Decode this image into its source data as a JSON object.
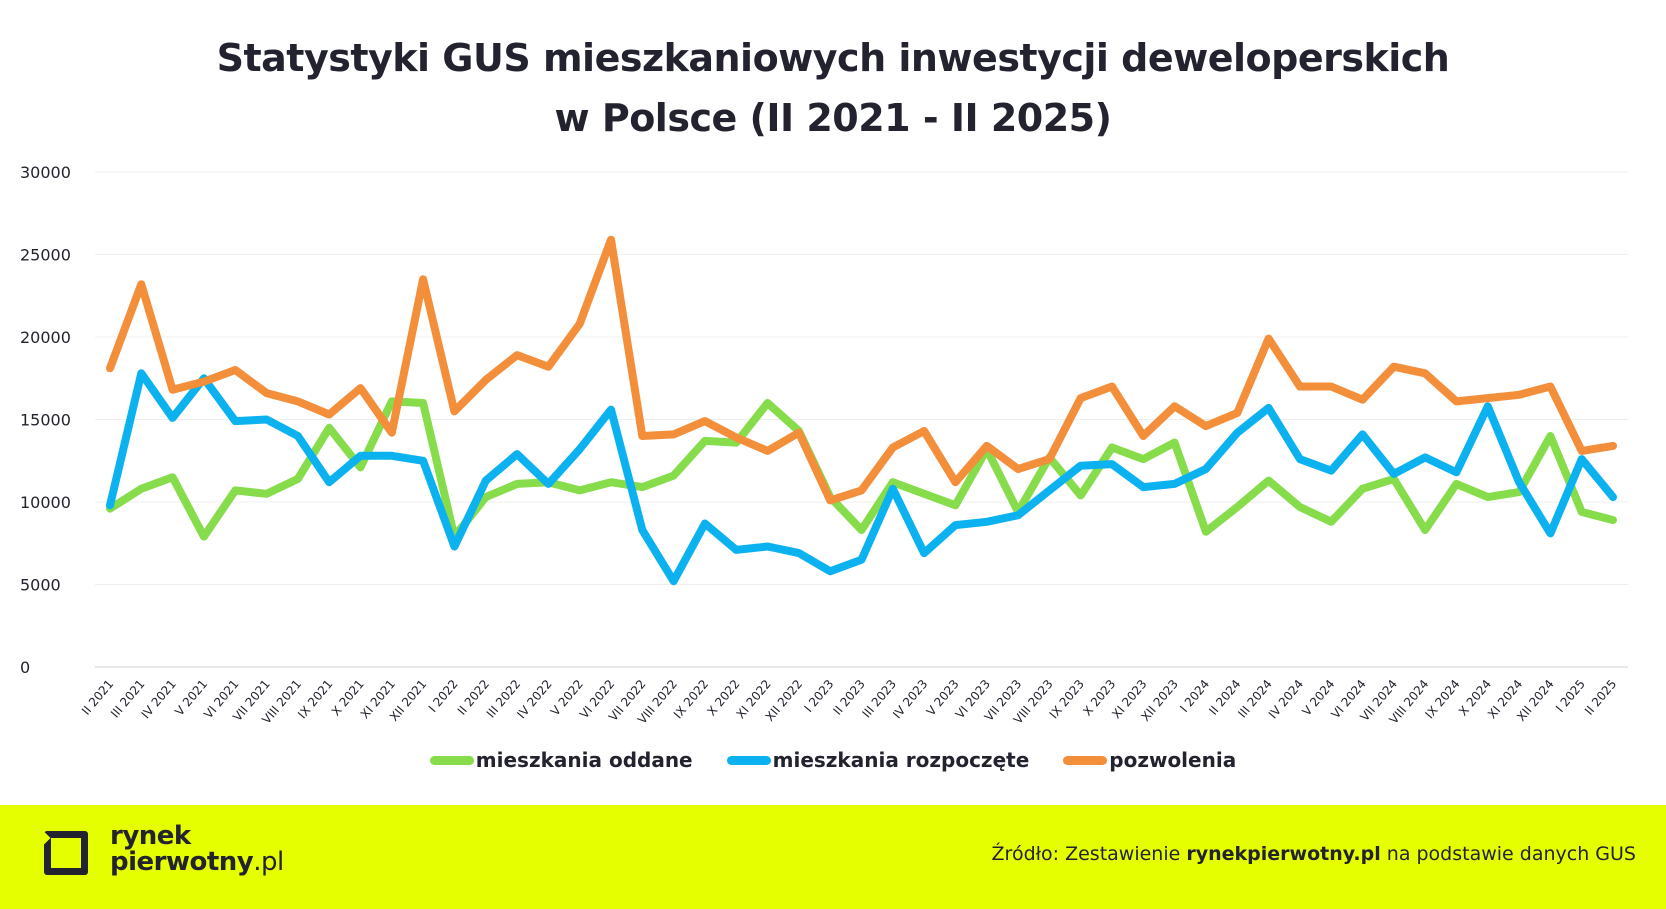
{
  "title_line1": "Statystyki GUS mieszkaniowych inwestycji deweloperskich",
  "title_line2": "w Polsce (II 2021 - II 2025)",
  "footer": {
    "logo_line1": "rynek",
    "logo_line2_bold": "pierwotny",
    "logo_line2_suffix": ".pl",
    "source_prefix": "Źródło: Zestawienie ",
    "source_bold": "rynekpierwotny.pl",
    "source_suffix": " na podstawie danych GUS"
  },
  "colors": {
    "green": "#86dc4b",
    "blue": "#0cb2ef",
    "orange": "#f38e3a",
    "text": "#23232f",
    "footer_bg": "#e6ff00"
  },
  "chart_data": {
    "type": "line",
    "title": "Statystyki GUS mieszkaniowych inwestycji deweloperskich w Polsce (II 2021 - II 2025)",
    "ylim": [
      0,
      30000
    ],
    "yticks": [
      0,
      5000,
      10000,
      15000,
      20000,
      25000,
      30000
    ],
    "grid": true,
    "legend_position": "bottom",
    "categories": [
      "II 2021",
      "III 2021",
      "IV 2021",
      "V 2021",
      "VI 2021",
      "VII 2021",
      "VIII 2021",
      "IX 2021",
      "X 2021",
      "XI 2021",
      "XII 2021",
      "I 2022",
      "II 2022",
      "III 2022",
      "IV 2022",
      "V 2022",
      "VI 2022",
      "VII 2022",
      "VIII 2022",
      "IX 2022",
      "X 2022",
      "XI 2022",
      "XII 2022",
      "I 2023",
      "II 2023",
      "III 2023",
      "IV 2023",
      "V 2023",
      "VI 2023",
      "VII 2023",
      "VIII 2023",
      "IX 2023",
      "X 2023",
      "XI 2023",
      "XII 2023",
      "I 2024",
      "II 2024",
      "III 2024",
      "IV 2024",
      "V 2024",
      "VI 2024",
      "VII 2024",
      "VIII 2024",
      "IX 2024",
      "X 2024",
      "XI 2024",
      "XII 2024",
      "I 2025",
      "II 2025"
    ],
    "series": [
      {
        "name": "mieszkania oddane",
        "color": "#86dc4b",
        "values": [
          9600,
          10800,
          11500,
          7900,
          10700,
          10500,
          11400,
          14500,
          12100,
          16100,
          16000,
          7900,
          10300,
          11100,
          11200,
          10700,
          11200,
          10900,
          11600,
          13700,
          13600,
          16000,
          14300,
          10300,
          8300,
          11200,
          10500,
          9800,
          13200,
          9400,
          12700,
          10400,
          13300,
          12600,
          13600,
          8200,
          9700,
          11300,
          9700,
          8800,
          10800,
          11400,
          8300,
          11100,
          10300,
          10600,
          14000,
          9400,
          8900
        ]
      },
      {
        "name": "mieszkania rozpoczęte",
        "color": "#0cb2ef",
        "values": [
          9800,
          17800,
          15100,
          17500,
          14900,
          15000,
          14000,
          11200,
          12800,
          12800,
          12500,
          7300,
          11300,
          12900,
          11100,
          13200,
          15600,
          8300,
          5200,
          8700,
          7100,
          7300,
          6900,
          5800,
          6500,
          10800,
          6900,
          8600,
          8800,
          9200,
          10700,
          12200,
          12300,
          10900,
          11100,
          12000,
          14200,
          15700,
          12600,
          11900,
          14100,
          11700,
          12700,
          11800,
          15800,
          11200,
          8100,
          12600,
          10300
        ]
      },
      {
        "name": "pozwolenia",
        "color": "#f38e3a",
        "values": [
          18100,
          23200,
          16800,
          17300,
          18000,
          16600,
          16100,
          15300,
          16900,
          14200,
          23500,
          15500,
          17400,
          18900,
          18200,
          20800,
          25900,
          14000,
          14100,
          14900,
          13900,
          13100,
          14200,
          10100,
          10700,
          13300,
          14300,
          11200,
          13400,
          12000,
          12600,
          16300,
          17000,
          14000,
          15800,
          14600,
          15400,
          19900,
          17000,
          17000,
          16200,
          18200,
          17800,
          16100,
          16300,
          16500,
          17000,
          13100,
          13400
        ]
      }
    ]
  }
}
